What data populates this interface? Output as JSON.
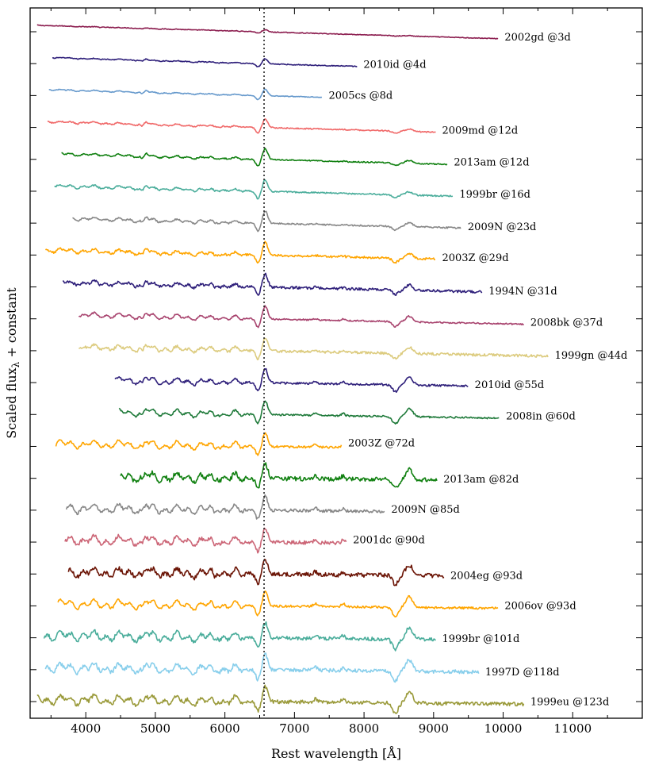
{
  "chart_data": {
    "type": "line",
    "xlabel": "Rest wavelength [Å]",
    "ylabel": "Scaled flux",
    "ylabel_sub": "λ",
    "ylabel_tail": " + constant",
    "xlim": [
      3200,
      12000
    ],
    "x_ticks": [
      4000,
      5000,
      6000,
      7000,
      8000,
      9000,
      10000,
      11000
    ],
    "x_tick_labels": [
      "4000",
      "5000",
      "6000",
      "7000",
      "8000",
      "9000",
      "10000",
      "11000"
    ],
    "reference_line": {
      "x": 6563,
      "style": "dotted",
      "color": "#222222"
    },
    "series": [
      {
        "label": "2002gd @3d",
        "color": "#8b1c4e",
        "xmin": 3300,
        "xmax": 9930,
        "offset": 0,
        "amp": 0.15,
        "noise": 0.05,
        "phase": 3
      },
      {
        "label": "2010id @4d",
        "color": "#2e1f7a",
        "xmin": 3520,
        "xmax": 7900,
        "offset": 1,
        "amp": 0.35,
        "noise": 0.06,
        "phase": 4
      },
      {
        "label": "2005cs @8d",
        "color": "#6699cc",
        "xmin": 3470,
        "xmax": 7400,
        "offset": 2,
        "amp": 0.45,
        "noise": 0.05,
        "phase": 8
      },
      {
        "label": "2009md @12d",
        "color": "#f06868",
        "xmin": 3450,
        "xmax": 9030,
        "offset": 3,
        "amp": 0.6,
        "noise": 0.08,
        "phase": 12
      },
      {
        "label": "2013am @12d",
        "color": "#108010",
        "xmin": 3650,
        "xmax": 9200,
        "offset": 4,
        "amp": 0.75,
        "noise": 0.08,
        "phase": 12
      },
      {
        "label": "1999br @16d",
        "color": "#4aad9b",
        "xmin": 3550,
        "xmax": 9280,
        "offset": 5,
        "amp": 0.8,
        "noise": 0.1,
        "phase": 16
      },
      {
        "label": "2009N @23d",
        "color": "#888888",
        "xmin": 3810,
        "xmax": 9400,
        "offset": 6,
        "amp": 0.85,
        "noise": 0.1,
        "phase": 23
      },
      {
        "label": "2003Z @29d",
        "color": "#ffa500",
        "xmin": 3420,
        "xmax": 9030,
        "offset": 7,
        "amp": 0.9,
        "noise": 0.15,
        "phase": 29
      },
      {
        "label": "1994N @31d",
        "color": "#2e1f7a",
        "xmin": 3670,
        "xmax": 9700,
        "offset": 8,
        "amp": 0.9,
        "noise": 0.18,
        "phase": 31
      },
      {
        "label": "2008bk @37d",
        "color": "#a8436e",
        "xmin": 3900,
        "xmax": 10300,
        "offset": 9,
        "amp": 0.9,
        "noise": 0.1,
        "phase": 37
      },
      {
        "label": "1999gn @44d",
        "color": "#dccb7e",
        "xmin": 3900,
        "xmax": 10650,
        "offset": 10,
        "amp": 0.9,
        "noise": 0.18,
        "phase": 44
      },
      {
        "label": "2010id @55d",
        "color": "#2e1f7a",
        "xmin": 4420,
        "xmax": 9500,
        "offset": 11,
        "amp": 0.95,
        "noise": 0.15,
        "phase": 55
      },
      {
        "label": "2008in @60d",
        "color": "#1f7a3a",
        "xmin": 4480,
        "xmax": 9950,
        "offset": 12,
        "amp": 0.95,
        "noise": 0.12,
        "phase": 60
      },
      {
        "label": "2003Z @72d",
        "color": "#ffa500",
        "xmin": 3570,
        "xmax": 7680,
        "offset": 13,
        "amp": 0.95,
        "noise": 0.15,
        "phase": 72
      },
      {
        "label": "2013am @82d",
        "color": "#108010",
        "xmin": 4500,
        "xmax": 9050,
        "offset": 14,
        "amp": 1.0,
        "noise": 0.3,
        "phase": 82
      },
      {
        "label": "2009N @85d",
        "color": "#888888",
        "xmin": 3720,
        "xmax": 8300,
        "offset": 15,
        "amp": 1.0,
        "noise": 0.2,
        "phase": 85
      },
      {
        "label": "2001dc @90d",
        "color": "#cc6677",
        "xmin": 3700,
        "xmax": 7750,
        "offset": 16,
        "amp": 1.0,
        "noise": 0.25,
        "phase": 90
      },
      {
        "label": "2004eg @93d",
        "color": "#6b1405",
        "xmin": 3750,
        "xmax": 9150,
        "offset": 17,
        "amp": 1.0,
        "noise": 0.3,
        "phase": 93
      },
      {
        "label": "2006ov @93d",
        "color": "#ffa500",
        "xmin": 3600,
        "xmax": 9930,
        "offset": 18,
        "amp": 1.0,
        "noise": 0.15,
        "phase": 93
      },
      {
        "label": "1999br @101d",
        "color": "#4aad9b",
        "xmin": 3400,
        "xmax": 9030,
        "offset": 19,
        "amp": 1.05,
        "noise": 0.25,
        "phase": 101
      },
      {
        "label": "1997D @118d",
        "color": "#87ceeb",
        "xmin": 3420,
        "xmax": 9650,
        "offset": 20,
        "amp": 1.05,
        "noise": 0.25,
        "phase": 118
      },
      {
        "label": "1999eu @123d",
        "color": "#9a9a3a",
        "xmin": 3300,
        "xmax": 10300,
        "offset": 21,
        "amp": 1.05,
        "noise": 0.25,
        "phase": 123
      }
    ]
  }
}
